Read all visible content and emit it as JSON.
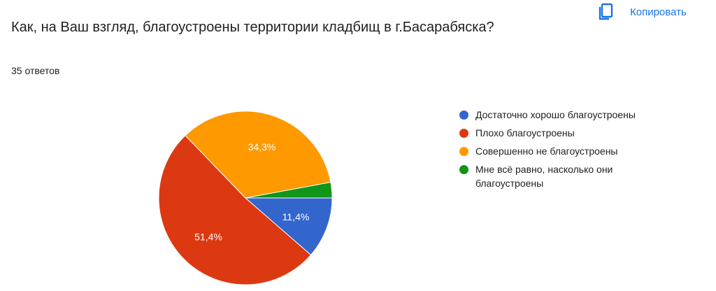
{
  "header": {
    "question": "Как, на Ваш взгляд, благоустроены территории кладбищ в г.Басарабяска?",
    "response_count": "35 ответов",
    "copy_label": "Копировать"
  },
  "chart_data": {
    "type": "pie",
    "legend_position": "right",
    "categories": [
      "Достаточно хорошо благоустроены",
      "Плохо благоустроены",
      "Совершенно не благоустроены",
      "Мне всё равно, насколько они благоустроены"
    ],
    "values": [
      11.4,
      51.4,
      34.3,
      2.9
    ],
    "labels": [
      "11,4%",
      "51,4%",
      "34,3%",
      ""
    ],
    "colors": [
      "#3366cc",
      "#dc3912",
      "#ff9900",
      "#109618"
    ]
  }
}
